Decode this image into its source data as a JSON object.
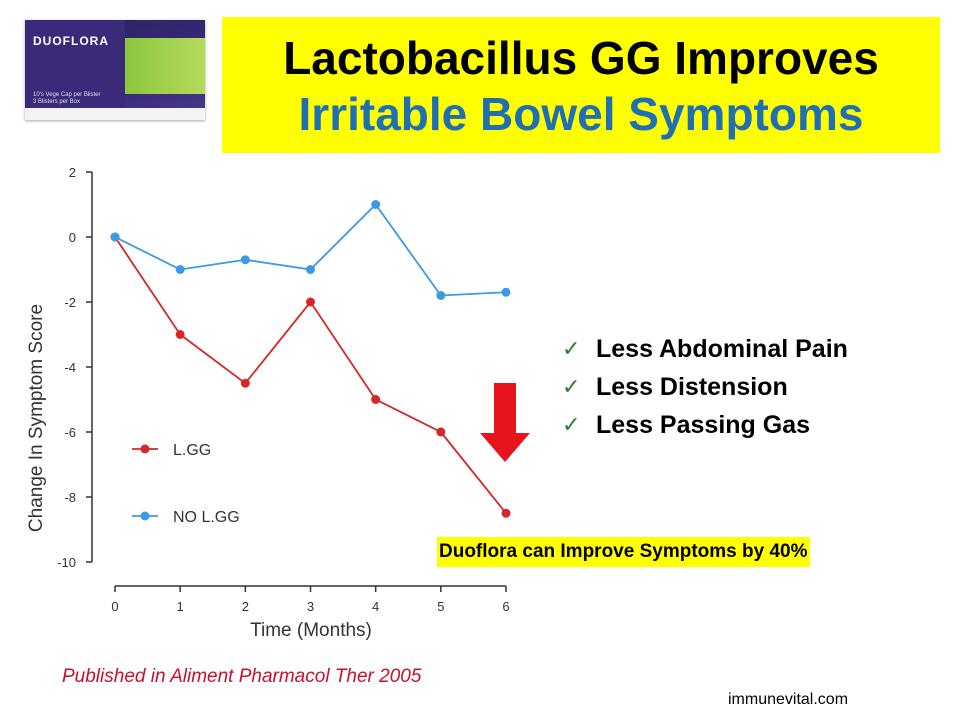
{
  "product": {
    "brand": "DUOFLORA",
    "caption": "10's Vege Cap per Blister\n3 Blisters per Box"
  },
  "title": {
    "line1": "Lactobacillus GG Improves",
    "line2": "Irritable Bowel Symptoms"
  },
  "chart_data": {
    "type": "line",
    "x": [
      0,
      1,
      2,
      3,
      4,
      5,
      6
    ],
    "xlabel": "Time (Months)",
    "ylabel": "Change In Symptom Score",
    "ylim": [
      -10,
      2
    ],
    "yticks": [
      2,
      0,
      -2,
      -4,
      -6,
      -8,
      -10
    ],
    "series": [
      {
        "name": "L.GG",
        "color": "#d62728",
        "values": [
          0,
          -3,
          -4.5,
          -2,
          -5,
          -6,
          -8.5
        ]
      },
      {
        "name": "NO L.GG",
        "color": "#3b9ae1",
        "values": [
          0,
          -1,
          -0.7,
          -1,
          1,
          -1.8,
          -1.7
        ]
      }
    ],
    "legend": "inside-left",
    "grid": false
  },
  "arrow_color": "#e8141c",
  "bullets": [
    "Less Abdominal Pain",
    "Less Distension",
    "Less Passing Gas"
  ],
  "highlight": "Duoflora can Improve Symptoms by 40%",
  "citation": "Published in Aliment Pharmacol Ther 2005",
  "website": "immunevital.com"
}
